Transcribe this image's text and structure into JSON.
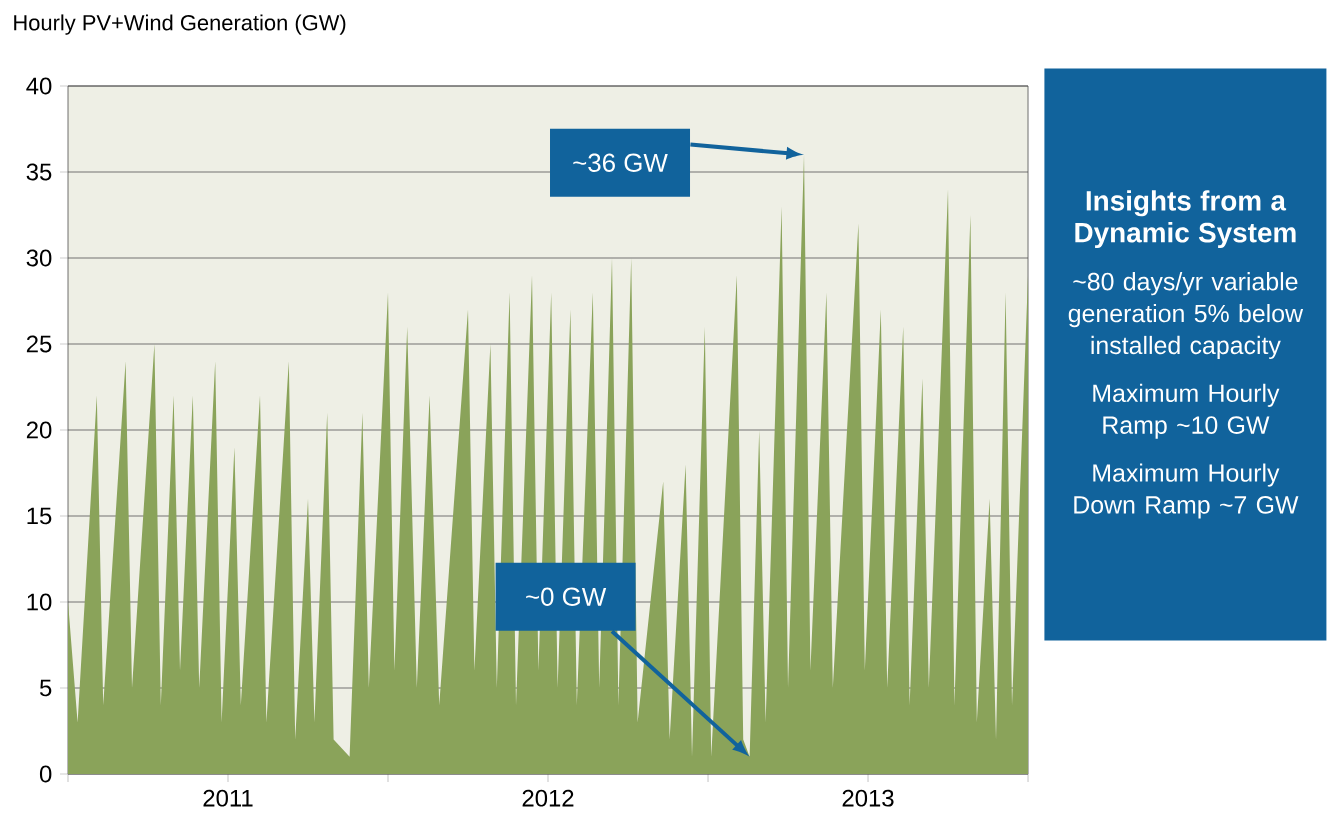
{
  "chart_data": {
    "type": "area",
    "ylabel": "Hourly PV+Wind Generation (GW)",
    "x": [
      2011.0,
      2011.03,
      2011.09,
      2011.11,
      2011.18,
      2011.2,
      2011.27,
      2011.29,
      2011.33,
      2011.35,
      2011.39,
      2011.41,
      2011.46,
      2011.48,
      2011.52,
      2011.54,
      2011.6,
      2011.62,
      2011.69,
      2011.71,
      2011.75,
      2011.77,
      2011.81,
      2011.83,
      2011.88,
      2011.92,
      2011.94,
      2012.0,
      2012.02,
      2012.06,
      2012.09,
      2012.13,
      2012.16,
      2012.25,
      2012.27,
      2012.32,
      2012.34,
      2012.38,
      2012.4,
      2012.45,
      2012.47,
      2012.51,
      2012.53,
      2012.57,
      2012.59,
      2012.64,
      2012.66,
      2012.7,
      2012.72,
      2012.76,
      2012.78,
      2012.86,
      2012.88,
      2012.93,
      2012.95,
      2012.99,
      2013.01,
      2013.09,
      2013.11,
      2013.13,
      2013.16,
      2013.18,
      2013.23,
      2013.25,
      2013.3,
      2013.32,
      2013.37,
      2013.39,
      2013.47,
      2013.49,
      2013.54,
      2013.56,
      2013.61,
      2013.63,
      2013.67,
      2013.69,
      2013.75,
      2013.77,
      2013.82,
      2013.84,
      2013.88,
      2013.9,
      2013.93,
      2013.95,
      2014.0
    ],
    "series": [
      {
        "color": "#8aa35a",
        "values": [
          10,
          3,
          22,
          4,
          24,
          5,
          25,
          4,
          22,
          6,
          22,
          5,
          24,
          3,
          19,
          4,
          22,
          3,
          24,
          2,
          16,
          3,
          21,
          2,
          1,
          21,
          5,
          28,
          6,
          26,
          5,
          22,
          4,
          27,
          6,
          25,
          5,
          28,
          4,
          29,
          6,
          28,
          5,
          27,
          4,
          28,
          5,
          30,
          4,
          30,
          3,
          17,
          2,
          18,
          1,
          26,
          1,
          29,
          2,
          1,
          20,
          3,
          33,
          5,
          36,
          6,
          28,
          5,
          32,
          6,
          27,
          5,
          26,
          4,
          23,
          5,
          34,
          4,
          32.5,
          3,
          16,
          2,
          28,
          4,
          29
        ]
      }
    ],
    "xlim": [
      2011,
      2014
    ],
    "xticks": [
      {
        "value": 2011,
        "label": null
      },
      {
        "value": 2011.5,
        "label": "2011"
      },
      {
        "value": 2012,
        "label": null
      },
      {
        "value": 2012.5,
        "label": "2012"
      },
      {
        "value": 2013,
        "label": null
      },
      {
        "value": 2013.5,
        "label": "2013"
      },
      {
        "value": 2014,
        "label": null
      }
    ],
    "ylim": [
      0,
      40
    ],
    "yticks": [
      0,
      5,
      10,
      15,
      20,
      25,
      30,
      35,
      40
    ],
    "grid": "y",
    "annotations": [
      {
        "text": "~36 GW",
        "x": 2013.3,
        "y": 36
      },
      {
        "text": "~0 GW",
        "x": 2013.13,
        "y": 1
      },
      "Insights from a Dynamic System",
      "~80 days/yr variable generation 5% below installed capacity",
      "Maximum Hourly Ramp ~10 GW",
      "Maximum Hourly Down Ramp ~7 GW"
    ]
  }
}
